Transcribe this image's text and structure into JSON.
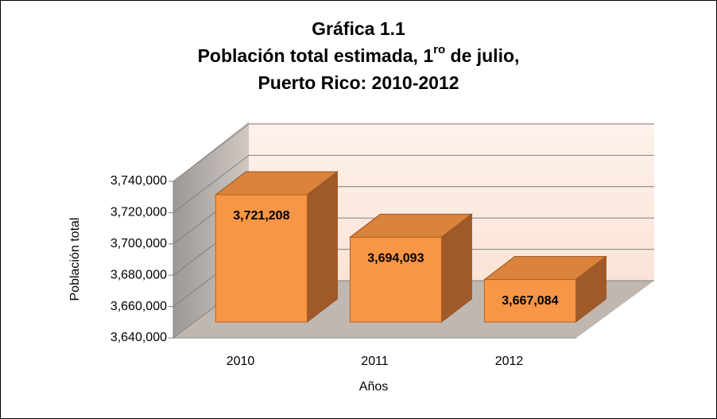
{
  "chart_data": {
    "type": "bar3d",
    "title": [
      "Gráfica 1.1",
      [
        "Población total estimada, 1",
        "ro",
        " de julio,"
      ],
      "Puerto Rico: 2010-2012"
    ],
    "categories": [
      "2010",
      "2011",
      "2012"
    ],
    "values": [
      3721208,
      3694093,
      3667084
    ],
    "value_labels": [
      "3,721,208",
      "3,694,093",
      "3,667,084"
    ],
    "color": "#f79646",
    "ylim": [
      3640000,
      3740000
    ],
    "yticks": [
      {
        "value": 3640000,
        "label": "3,640,000"
      },
      {
        "value": 3660000,
        "label": "3,660,000"
      },
      {
        "value": 3680000,
        "label": "3,680,000"
      },
      {
        "value": 3700000,
        "label": "3,700,000"
      },
      {
        "value": 3720000,
        "label": "3,720,000"
      },
      {
        "value": 3740000,
        "label": "3,740,000"
      }
    ],
    "x_label": "Años",
    "y_label": "Población total",
    "grid": true
  }
}
